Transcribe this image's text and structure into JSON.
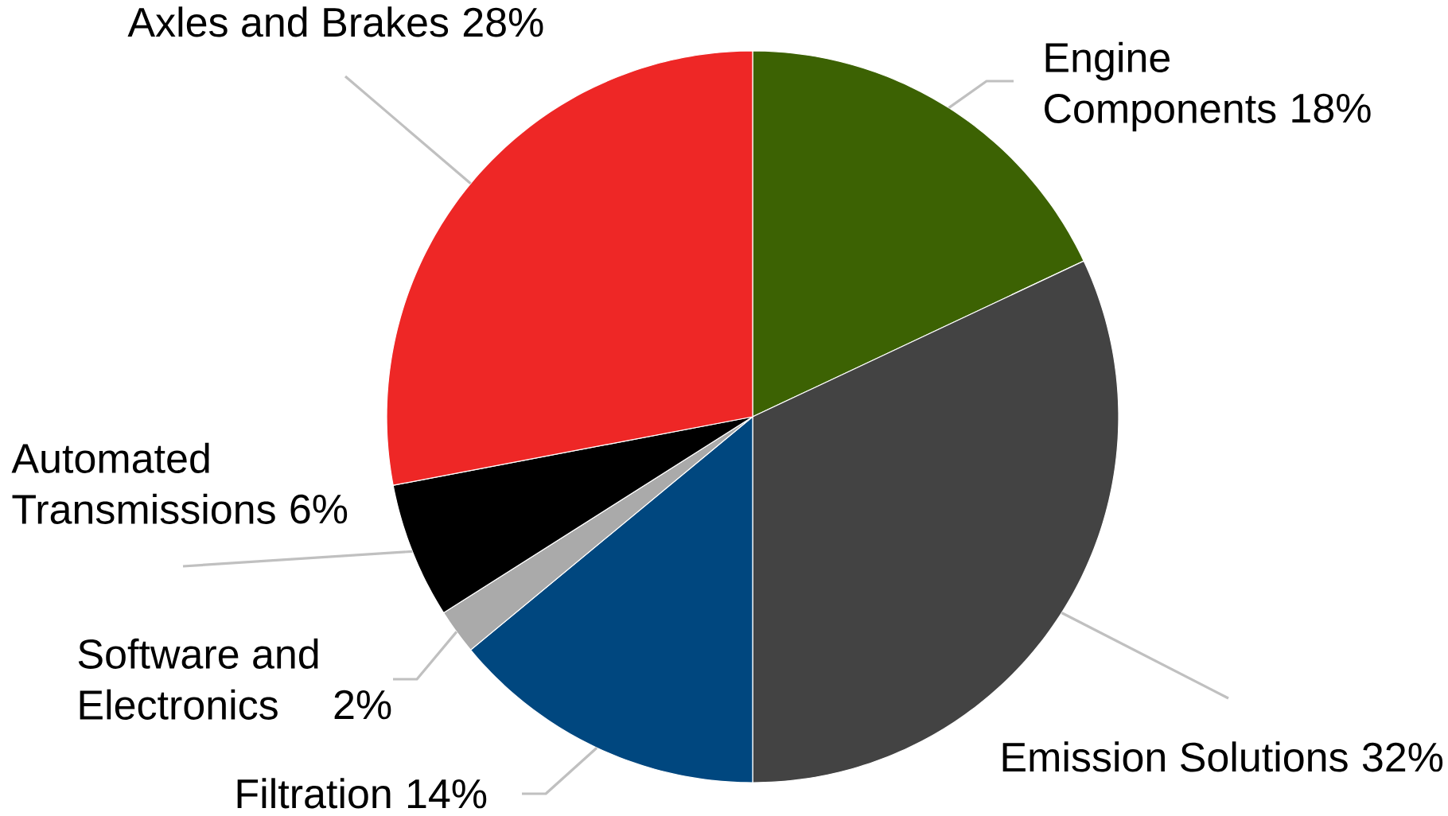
{
  "chart_data": {
    "type": "pie",
    "categories": [
      "Engine Components",
      "Emission Solutions",
      "Filtration",
      "Software and Electronics",
      "Automated Transmissions",
      "Axles and Brakes"
    ],
    "values": [
      18,
      32,
      14,
      2,
      6,
      28
    ],
    "colors": [
      "#3c6203",
      "#434343",
      "#00477f",
      "#aaaaaa",
      "#000000",
      "#ee2726"
    ],
    "value_labels": [
      "18%",
      "32%",
      "14%",
      "2%",
      "6%",
      "28%"
    ]
  }
}
